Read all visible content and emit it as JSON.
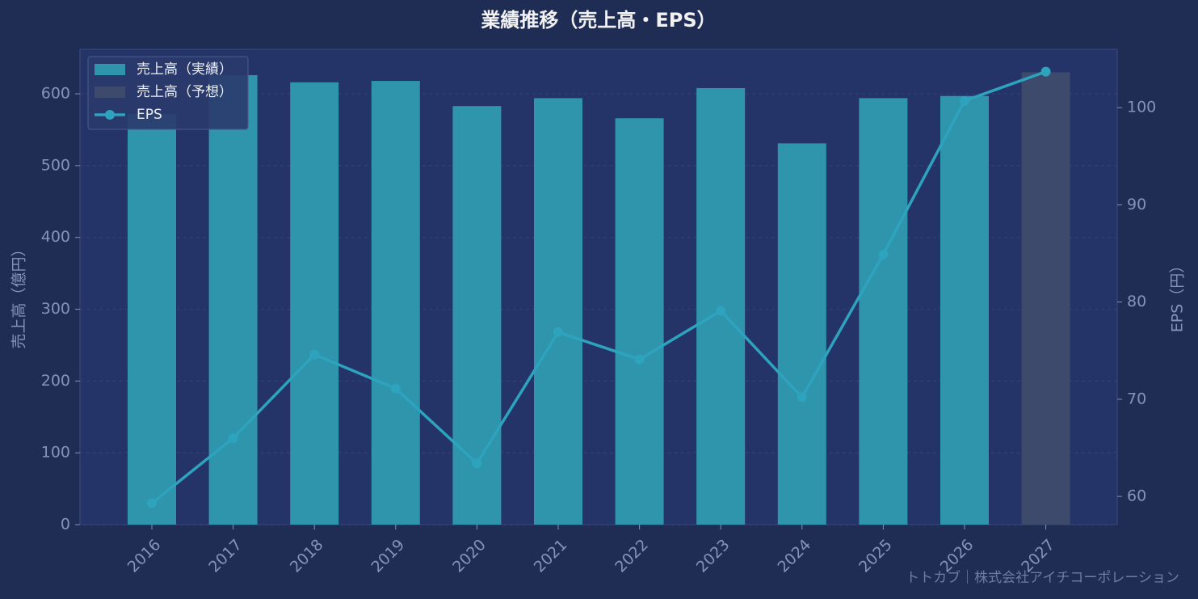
{
  "chart_data": {
    "type": "bar",
    "title": "業績推移（売上高・EPS）",
    "y_label": "売上高（億円）",
    "y2_label": "EPS（円）",
    "footer": "トトカブ｜株式会社アイチコーポレーション",
    "categories": [
      "2016",
      "2017",
      "2018",
      "2019",
      "2020",
      "2021",
      "2022",
      "2023",
      "2024",
      "2025",
      "2026",
      "2027"
    ],
    "series": [
      {
        "name": "売上高（実績）",
        "type": "bar",
        "color": "#2e95ad",
        "values": [
          572,
          626,
          616,
          618,
          583,
          594,
          566,
          608,
          531,
          594,
          597,
          null
        ]
      },
      {
        "name": "売上高（予想）",
        "type": "bar",
        "color": "#3d4a6b",
        "values": [
          null,
          null,
          null,
          null,
          null,
          null,
          null,
          null,
          null,
          null,
          null,
          630
        ]
      },
      {
        "name": "EPS",
        "type": "line",
        "axis": "y2",
        "color": "#2ea3bd",
        "values": [
          59.3,
          66.0,
          74.6,
          71.1,
          63.4,
          76.9,
          74.1,
          79.1,
          70.2,
          84.9,
          100.7,
          103.7
        ]
      }
    ],
    "ylim": [
      0,
      662
    ],
    "yticks": [
      0,
      100,
      200,
      300,
      400,
      500,
      600
    ],
    "y2lim": [
      57.1,
      106
    ],
    "y2ticks": [
      60,
      70,
      80,
      90,
      100
    ],
    "grid": true,
    "legend": "upper-left"
  }
}
